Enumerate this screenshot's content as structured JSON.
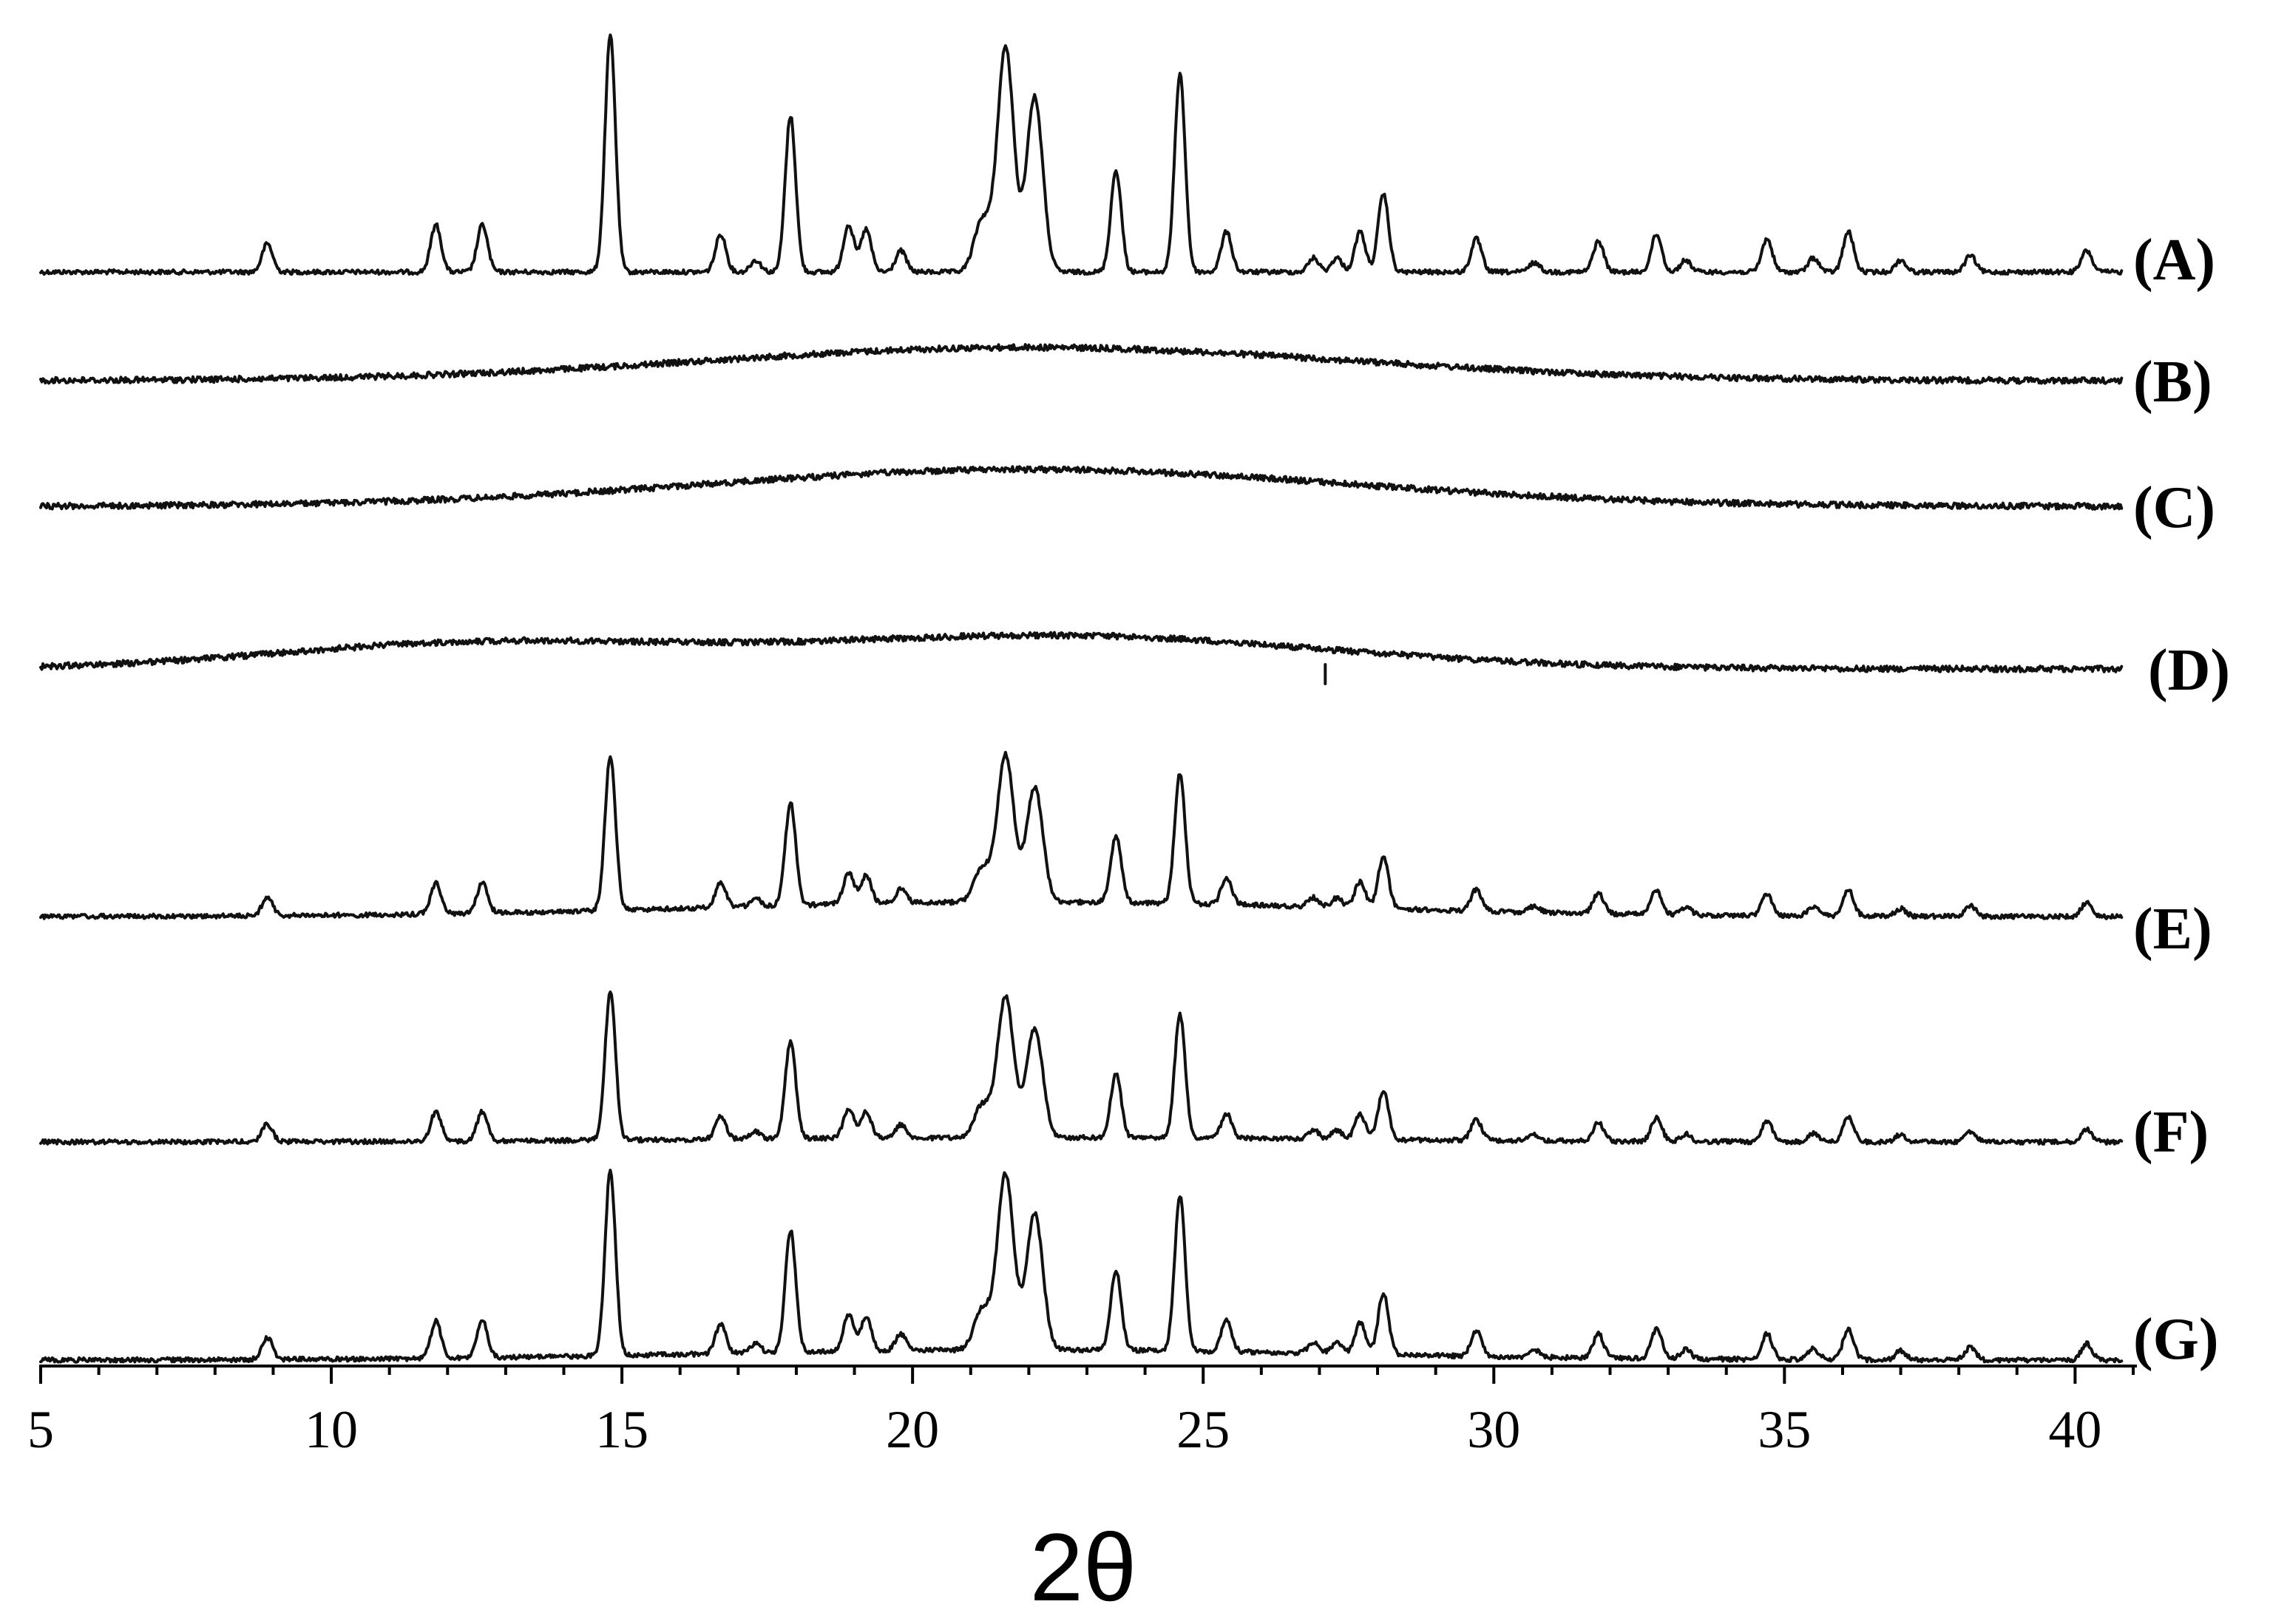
{
  "chart_data": {
    "type": "line",
    "title": "",
    "xlabel": "2θ",
    "ylabel": "",
    "xlim": [
      5,
      41
    ],
    "x_ticks": [
      5,
      10,
      15,
      20,
      25,
      30,
      35,
      40
    ],
    "x_tick_labels": [
      "5",
      "10",
      "15",
      "20",
      "25",
      "30",
      "35",
      "40"
    ],
    "grid": false,
    "stacked_offsets": true,
    "x_range": [
      5,
      40.8
    ],
    "peaks_A": [
      [
        8.9,
        0.12
      ],
      [
        11.8,
        0.2
      ],
      [
        12.6,
        0.2
      ],
      [
        14.8,
        1.0
      ],
      [
        16.7,
        0.16
      ],
      [
        17.3,
        0.05
      ],
      [
        17.9,
        0.66
      ],
      [
        18.9,
        0.2
      ],
      [
        19.2,
        0.18
      ],
      [
        19.8,
        0.09
      ],
      [
        21.2,
        0.22
      ],
      [
        21.6,
        0.95
      ],
      [
        22.1,
        0.74
      ],
      [
        23.5,
        0.43
      ],
      [
        24.6,
        0.84
      ],
      [
        25.4,
        0.17
      ],
      [
        26.9,
        0.06
      ],
      [
        27.3,
        0.06
      ],
      [
        27.7,
        0.17
      ],
      [
        28.1,
        0.33
      ],
      [
        29.7,
        0.14
      ],
      [
        30.7,
        0.04
      ],
      [
        31.8,
        0.13
      ],
      [
        32.8,
        0.16
      ],
      [
        33.3,
        0.05
      ],
      [
        34.7,
        0.14
      ],
      [
        35.5,
        0.06
      ],
      [
        36.1,
        0.17
      ],
      [
        37.0,
        0.05
      ],
      [
        38.2,
        0.07
      ],
      [
        40.2,
        0.09
      ]
    ],
    "series": [
      {
        "name": "(A)",
        "kind": "crystalline",
        "scale": 1.0,
        "halo": 0.0
      },
      {
        "name": "(B)",
        "kind": "amorphous",
        "scale": 0.0,
        "halo": 1.0
      },
      {
        "name": "(C)",
        "kind": "amorphous",
        "scale": 0.0,
        "halo": 1.0
      },
      {
        "name": "(D)",
        "kind": "amorphous",
        "scale": 0.0,
        "halo": 1.0
      },
      {
        "name": "(E)",
        "kind": "crystalline",
        "scale": 0.65,
        "halo": 1.0
      },
      {
        "name": "(F)",
        "kind": "crystalline",
        "scale": 0.62,
        "halo": 0.3
      },
      {
        "name": "(G)",
        "kind": "crystalline",
        "scale": 0.8,
        "halo": 0.6
      }
    ],
    "series_color": "#111111"
  }
}
